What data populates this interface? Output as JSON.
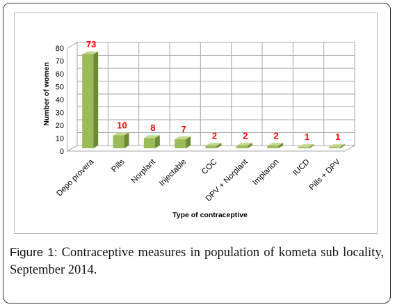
{
  "chart_data": {
    "type": "bar",
    "categories": [
      "Depo provera",
      "Pills",
      "Norplant",
      "Injectable",
      "COC",
      "DPV + Norplant",
      "Implanon",
      "IUCD",
      "Pills + DPV"
    ],
    "values": [
      73,
      10,
      8,
      7,
      2,
      2,
      2,
      1,
      1
    ],
    "data_labels": [
      "73",
      "10",
      "8",
      "7",
      "2",
      "2",
      "2",
      "1",
      "1"
    ],
    "xlabel": "Type of contraceptive",
    "ylabel": "Number of women",
    "ylim": [
      0,
      80
    ],
    "yticks": [
      0,
      10,
      20,
      30,
      40,
      50,
      60,
      70,
      80
    ],
    "grid": true,
    "style": "3d-column",
    "colors": {
      "bar": "#9bbb59",
      "bar_side": "#6f8a34",
      "bar_top": "#c2d88c",
      "data_label": "#ff0000",
      "grid": "#a6a6a6"
    }
  },
  "caption": {
    "label": "Figure 1:",
    "text": " Contraceptive measures in population of kometa sub locality, September 2014."
  }
}
